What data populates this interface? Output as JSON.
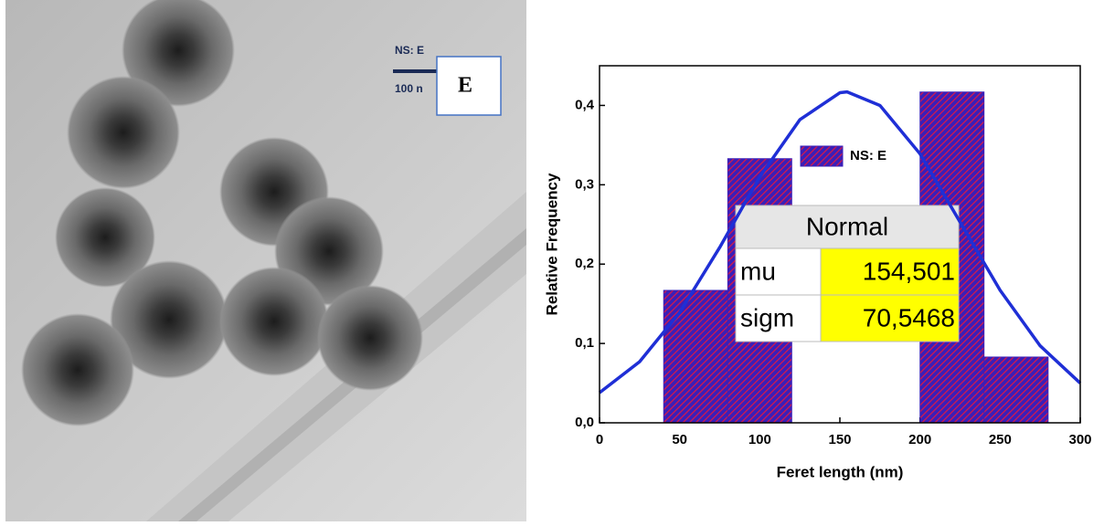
{
  "image": {
    "label": "NS: E",
    "scale_bar": "100 n",
    "panel": "E"
  },
  "chart_data": {
    "type": "histogram",
    "bins": [
      40,
      80,
      120,
      160,
      200,
      240,
      280
    ],
    "values": [
      0.167,
      0.333,
      0,
      0,
      0.417,
      0.083
    ],
    "series_name": "NS: E",
    "color": "#3a1fb8",
    "hatch_color": "#d81848",
    "xlabel": "Feret length (nm)",
    "ylabel": "Relative Frequency",
    "xlim": [
      0,
      300
    ],
    "ylim": [
      0,
      0.45
    ],
    "xticks": [
      0,
      50,
      100,
      150,
      200,
      250,
      300
    ],
    "yticks": [
      {
        "value": 0,
        "label": "0,0"
      },
      {
        "value": 0.1,
        "label": "0,1"
      },
      {
        "value": 0.2,
        "label": "0,2"
      },
      {
        "value": 0.3,
        "label": "0,3"
      },
      {
        "value": 0.4,
        "label": "0,4"
      }
    ],
    "fit": {
      "type": "line",
      "color": "#1f2fd6",
      "x": [
        0,
        25,
        50,
        75,
        100,
        125,
        150,
        154.5,
        175,
        200,
        225,
        250,
        275,
        300
      ],
      "values": [
        0.038,
        0.077,
        0.139,
        0.221,
        0.31,
        0.382,
        0.416,
        0.417,
        0.4,
        0.339,
        0.253,
        0.167,
        0.097,
        0.05
      ]
    },
    "fit_table": {
      "title": "Normal",
      "rows": [
        [
          "mu",
          "154,501"
        ],
        [
          "sigm",
          "70,5468"
        ]
      ]
    }
  }
}
